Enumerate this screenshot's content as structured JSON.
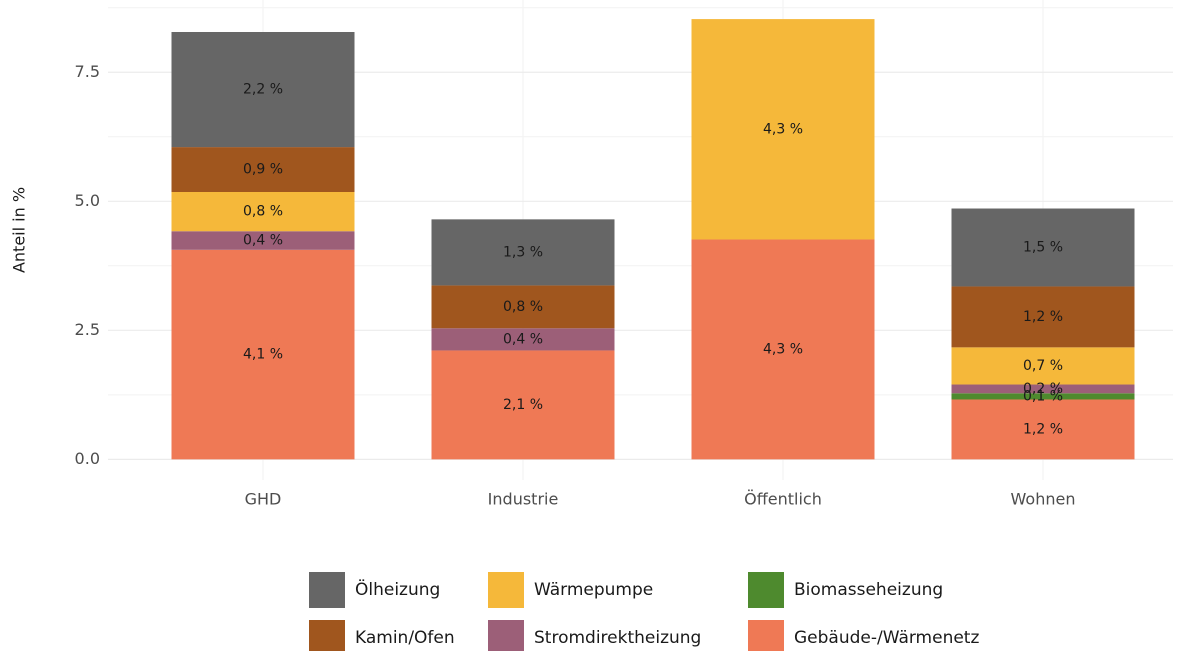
{
  "chart_data": {
    "type": "stacked_bar",
    "y_label": "Anteil in %",
    "categories": [
      "GHD",
      "Industrie",
      "Öffentlich",
      "Wohnen"
    ],
    "series": [
      {
        "name": "Ölheizung",
        "color": "#666666",
        "values": [
          2.23,
          1.28,
          null,
          1.51
        ],
        "value_labels": [
          "2,2 %",
          "1,3 %",
          null,
          "1,5 %"
        ]
      },
      {
        "name": "Kamin/Ofen",
        "color": "#a0561e",
        "values": [
          0.87,
          0.83,
          null,
          1.18
        ],
        "value_labels": [
          "0,9 %",
          "0,8 %",
          null,
          "1,2 %"
        ]
      },
      {
        "name": "Wärmepumpe",
        "color": "#f5b83a",
        "values": [
          0.76,
          null,
          4.27,
          0.72
        ],
        "value_labels": [
          "0,8 %",
          null,
          "4,3 %",
          "0,7 %"
        ]
      },
      {
        "name": "Stromdirektheizung",
        "color": "#9c5f78",
        "values": [
          0.36,
          0.43,
          null,
          0.17
        ],
        "value_labels": [
          "0,4 %",
          "0,4 %",
          null,
          "0,2 %"
        ]
      },
      {
        "name": "Biomasseheizung",
        "color": "#4e8a2e",
        "values": [
          null,
          null,
          null,
          0.12
        ],
        "value_labels": [
          null,
          null,
          null,
          "0,1 %"
        ]
      },
      {
        "name": "Gebäude-/Wärmenetz",
        "color": "#ef7955",
        "values": [
          4.06,
          2.11,
          4.26,
          1.16
        ],
        "value_labels": [
          "4,1 %",
          "2,1 %",
          "4,3 %",
          "1,2 %"
        ]
      }
    ],
    "ylim": [
      -0.4,
      8.9
    ],
    "yticks": [
      {
        "value": 0,
        "label": "0.0"
      },
      2.5,
      {
        "value": 5,
        "label": "5.0"
      },
      7.5
    ],
    "grid": true,
    "legend": "bottom"
  }
}
